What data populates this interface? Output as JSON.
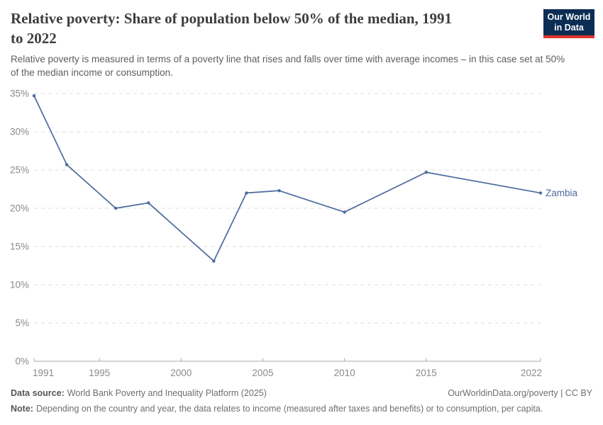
{
  "header": {
    "title_line1": "Relative poverty: Share of population below 50% of the median, 1991",
    "title_line2": "to 2022",
    "logo": {
      "line1": "Our World",
      "line2": "in Data"
    }
  },
  "subtitle": "Relative poverty is measured in terms of a poverty line that rises and falls over time with average incomes – in this case set at 50% of the median income or consumption.",
  "chart_data": {
    "type": "line",
    "title": "Relative poverty: Share of population below 50% of the median, 1991 to 2022",
    "series": [
      {
        "name": "Zambia",
        "color": "#4c6a9c",
        "x": [
          1991,
          1993,
          1996,
          1998,
          2002,
          2004,
          2006,
          2010,
          2015,
          2022
        ],
        "y": [
          34.7,
          25.7,
          20.0,
          20.7,
          13.1,
          22.0,
          22.3,
          19.5,
          24.7,
          22.0
        ]
      }
    ],
    "x_ticks": [
      1991,
      1995,
      2000,
      2005,
      2010,
      2015,
      2022
    ],
    "y_ticks": [
      0,
      5,
      10,
      15,
      20,
      25,
      30,
      35
    ],
    "y_tick_suffix": "%",
    "xlim": [
      1991,
      2022
    ],
    "ylim": [
      0,
      35
    ],
    "grid": "horizontal-dashed",
    "legend_position": "right-of-line-end",
    "xlabel": "",
    "ylabel": ""
  },
  "footer": {
    "source_label": "Data source:",
    "source_text": "World Bank Poverty and Inequality Platform (2025)",
    "attribution": "OurWorldinData.org/poverty | CC BY",
    "note_label": "Note:",
    "note_text": "Depending on the country and year, the data relates to income (measured after taxes and benefits) or to consumption, per capita."
  },
  "colors": {
    "line": "#4c6a9c",
    "logo_bg": "#0c2d54",
    "logo_red": "#e0352c",
    "gridline": "#dcdcdc",
    "axis": "#a9a9a9",
    "axis_label": "#8a8a8a"
  }
}
